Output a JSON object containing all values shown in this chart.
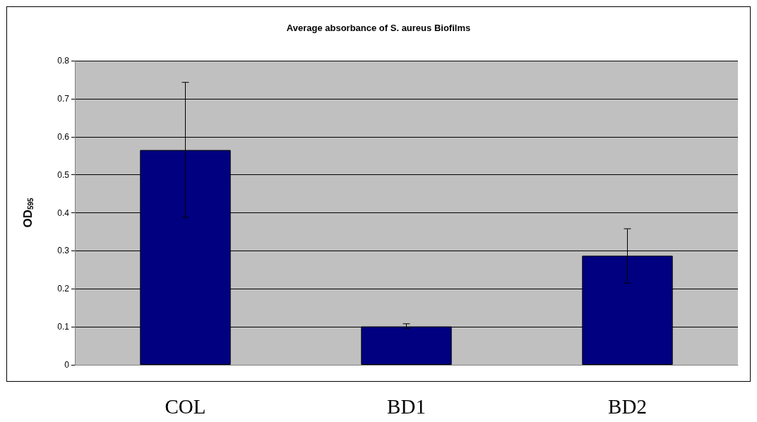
{
  "chart_data": {
    "type": "bar",
    "title": "Average absorbance of S. aureus Biofilms",
    "ylabel": "OD$_{595}$",
    "categories": [
      "COL",
      "BD1",
      "BD2"
    ],
    "values": [
      0.565,
      0.101,
      0.287
    ],
    "errors": [
      [
        0.388,
        0.743
      ],
      [
        0.096,
        0.108
      ],
      [
        0.215,
        0.358
      ]
    ],
    "color": "#000080",
    "ylim": [
      0,
      0.8
    ],
    "yticks": [
      0,
      0.1,
      0.2,
      0.3,
      0.4,
      0.5,
      0.6,
      0.7,
      0.8
    ],
    "grid": "y"
  }
}
